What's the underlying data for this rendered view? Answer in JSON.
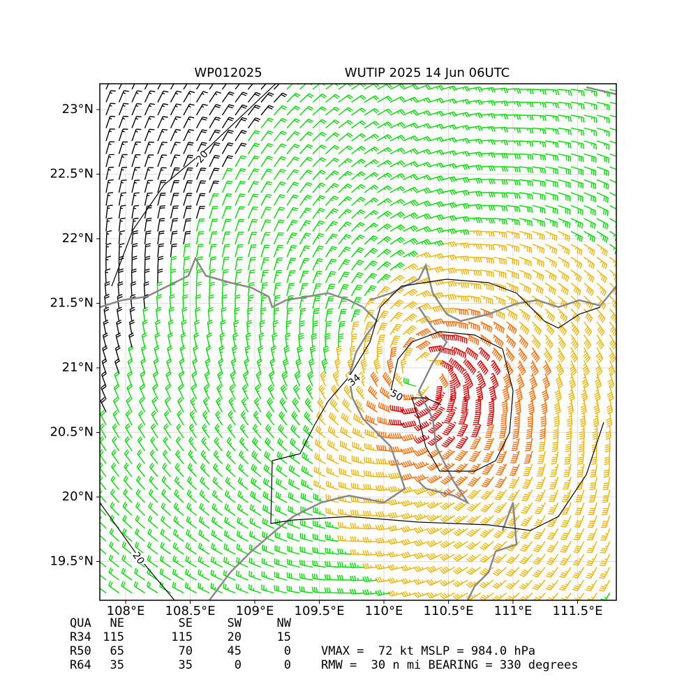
{
  "chart_data": {
    "type": "barbmap",
    "title_left": "WP012025",
    "title": "WUTIP 2025 14 Jun 06UTC",
    "xlim": [
      107.8,
      111.8
    ],
    "ylim": [
      19.2,
      23.2
    ],
    "xticks": [
      {
        "value": 108,
        "label": "108°E"
      },
      {
        "value": 108.5,
        "label": "108.5°E"
      },
      {
        "value": 109,
        "label": "109°E"
      },
      {
        "value": 109.5,
        "label": "109.5°E"
      },
      {
        "value": 110,
        "label": "110°E"
      },
      {
        "value": 110.5,
        "label": "110.5°E"
      },
      {
        "value": 111,
        "label": "111°E"
      },
      {
        "value": 111.5,
        "label": "111.5°E"
      }
    ],
    "yticks": [
      {
        "value": 19.5,
        "label": "19.5°N"
      },
      {
        "value": 20,
        "label": "20°N"
      },
      {
        "value": 20.5,
        "label": "20.5°N"
      },
      {
        "value": 21,
        "label": "21°N"
      },
      {
        "value": 21.5,
        "label": "21.5°N"
      },
      {
        "value": 22,
        "label": "22°N"
      },
      {
        "value": 22.5,
        "label": "22.5°N"
      },
      {
        "value": 23,
        "label": "23°N"
      }
    ],
    "grid": true,
    "contour_labels": [
      20,
      34,
      50,
      20
    ]
  },
  "table": {
    "header": [
      "QUA",
      "NE",
      "SE",
      "SW",
      "NW"
    ],
    "rows": [
      [
        "R34",
        115,
        115,
        20,
        15
      ],
      [
        "R50",
        65,
        70,
        45,
        0
      ],
      [
        "R64",
        35,
        35,
        0,
        0
      ]
    ]
  },
  "info": [
    "VMAX =  72 kt MSLP = 984.0 hPa",
    "RMW =  30 n mi BEARING = 330 degrees"
  ]
}
